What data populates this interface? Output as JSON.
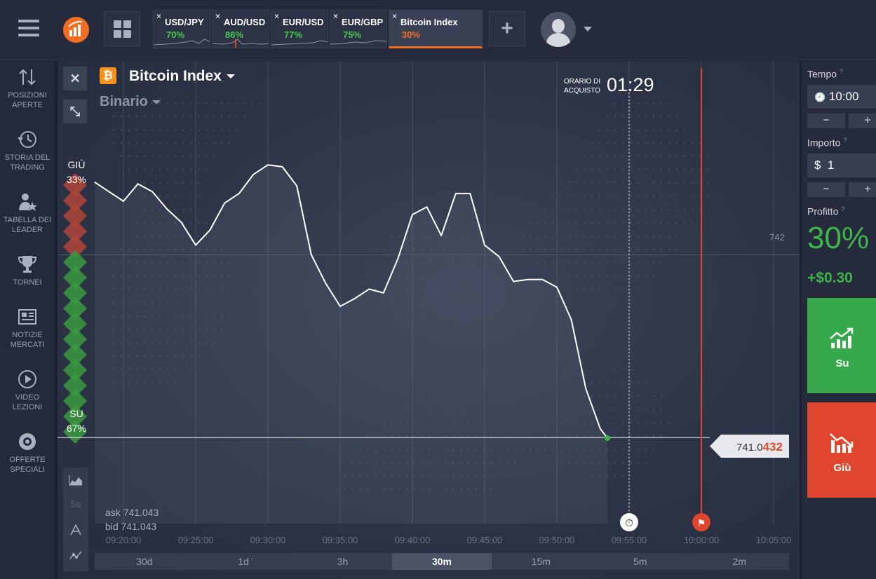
{
  "topbar": {
    "menu_icon": "hamburger-icon",
    "logo_icon": "bar-chart-logo-icon",
    "grid_icon": "grid-icon",
    "tabs": [
      {
        "name": "USD/JPY",
        "pct": "70%"
      },
      {
        "name": "AUD/USD",
        "pct": "86%"
      },
      {
        "name": "EUR/USD",
        "pct": "77%"
      },
      {
        "name": "EUR/GBP",
        "pct": "75%"
      },
      {
        "name": "Bitcoin Index",
        "pct": "30%"
      }
    ],
    "close_glyph": "×",
    "add_label": "+",
    "avatar_icon": "user-avatar-icon"
  },
  "sidebar": {
    "items": [
      {
        "label": "POSIZIONI APERTE",
        "icon": "arrows-updown-icon"
      },
      {
        "label": "STORIA DEL TRADING",
        "icon": "history-icon"
      },
      {
        "label": "TABELLA DEI LEADER",
        "icon": "leaders-icon"
      },
      {
        "label": "TORNEI",
        "icon": "trophy-icon"
      },
      {
        "label": "NOTIZIE MERCATI",
        "icon": "news-icon"
      },
      {
        "label": "VIDEO LEZIONI",
        "icon": "play-icon"
      },
      {
        "label": "OFFERTE SPECIALI",
        "icon": "gear-badge-icon"
      }
    ]
  },
  "chart": {
    "close_glyph": "✕",
    "collapse_glyph": "⤡",
    "asset_symbol": "₿",
    "asset_title": "Bitcoin Index",
    "mode": "Binario",
    "purchase_label": "ORARIO DI ACQUISTO",
    "purchase_timer": "01:29",
    "down_label": "GIÙ",
    "down_pct": "33%",
    "up_label": "SU",
    "up_pct": "67%",
    "current_price_prefix": "741.0",
    "current_price_suffix": "432",
    "level_label": "742",
    "ask_label": "ask",
    "ask_value": "741.043",
    "bid_label": "bid",
    "bid_value": "741.043",
    "timer_glyph": "⏱",
    "finish_glyph": "⚑",
    "tool_5s": "5s",
    "time_labels": [
      "09:20:00",
      "09:25:00",
      "09:30:00",
      "09:35:00",
      "09:40:00",
      "09:45:00",
      "09:50:00",
      "09:55:00",
      "10:00:00",
      "10:05:00"
    ],
    "periods": [
      "30d",
      "1d",
      "3h",
      "30m",
      "15m",
      "5m",
      "2m"
    ],
    "active_period": "30m"
  },
  "chart_data": {
    "type": "line",
    "x": [
      "09:18:00",
      "09:19:00",
      "09:20:00",
      "09:21:00",
      "09:22:00",
      "09:23:00",
      "09:24:00",
      "09:25:00",
      "09:26:00",
      "09:27:00",
      "09:28:00",
      "09:29:00",
      "09:30:00",
      "09:31:00",
      "09:32:00",
      "09:33:00",
      "09:34:00",
      "09:35:00",
      "09:36:00",
      "09:37:00",
      "09:38:00",
      "09:39:00",
      "09:40:00",
      "09:41:00",
      "09:42:00",
      "09:43:00",
      "09:44:00",
      "09:45:00",
      "09:46:00",
      "09:47:00",
      "09:48:00",
      "09:49:00",
      "09:50:00",
      "09:51:00",
      "09:52:00",
      "09:53:00",
      "09:53:30"
    ],
    "values": [
      742.38,
      742.33,
      742.28,
      742.37,
      742.33,
      742.24,
      742.17,
      742.05,
      742.13,
      742.27,
      742.32,
      742.42,
      742.47,
      742.46,
      742.36,
      742.0,
      741.85,
      741.73,
      741.77,
      741.82,
      741.8,
      741.98,
      742.21,
      742.25,
      742.1,
      742.32,
      742.32,
      742.05,
      741.99,
      741.86,
      741.87,
      741.87,
      741.83,
      741.66,
      741.3,
      741.09,
      741.04
    ],
    "ylim": [
      741.0,
      742.5
    ],
    "reference_lines": {
      "current_price": "741.0432",
      "level": "742"
    },
    "expiry_lines": [
      "09:55:00",
      "10:00:00"
    ]
  },
  "right": {
    "time_label": "Tempo",
    "time_value": "10:00",
    "clock_glyph": "🕘",
    "amount_label": "Importo",
    "currency": "$",
    "amount_value": "1",
    "minus": "−",
    "plus": "+",
    "profit_label": "Profitto",
    "profit_pct": "30%",
    "profit_amount": "+$0.30",
    "help_glyph": "?",
    "up_button": "Su",
    "down_button": "Giù",
    "up_icon": "trend-up-icon",
    "down_icon": "trend-down-icon"
  },
  "colors": {
    "accent": "#f36d21",
    "up": "#35a94b",
    "down": "#e0452e",
    "bg": "#2d3447"
  }
}
